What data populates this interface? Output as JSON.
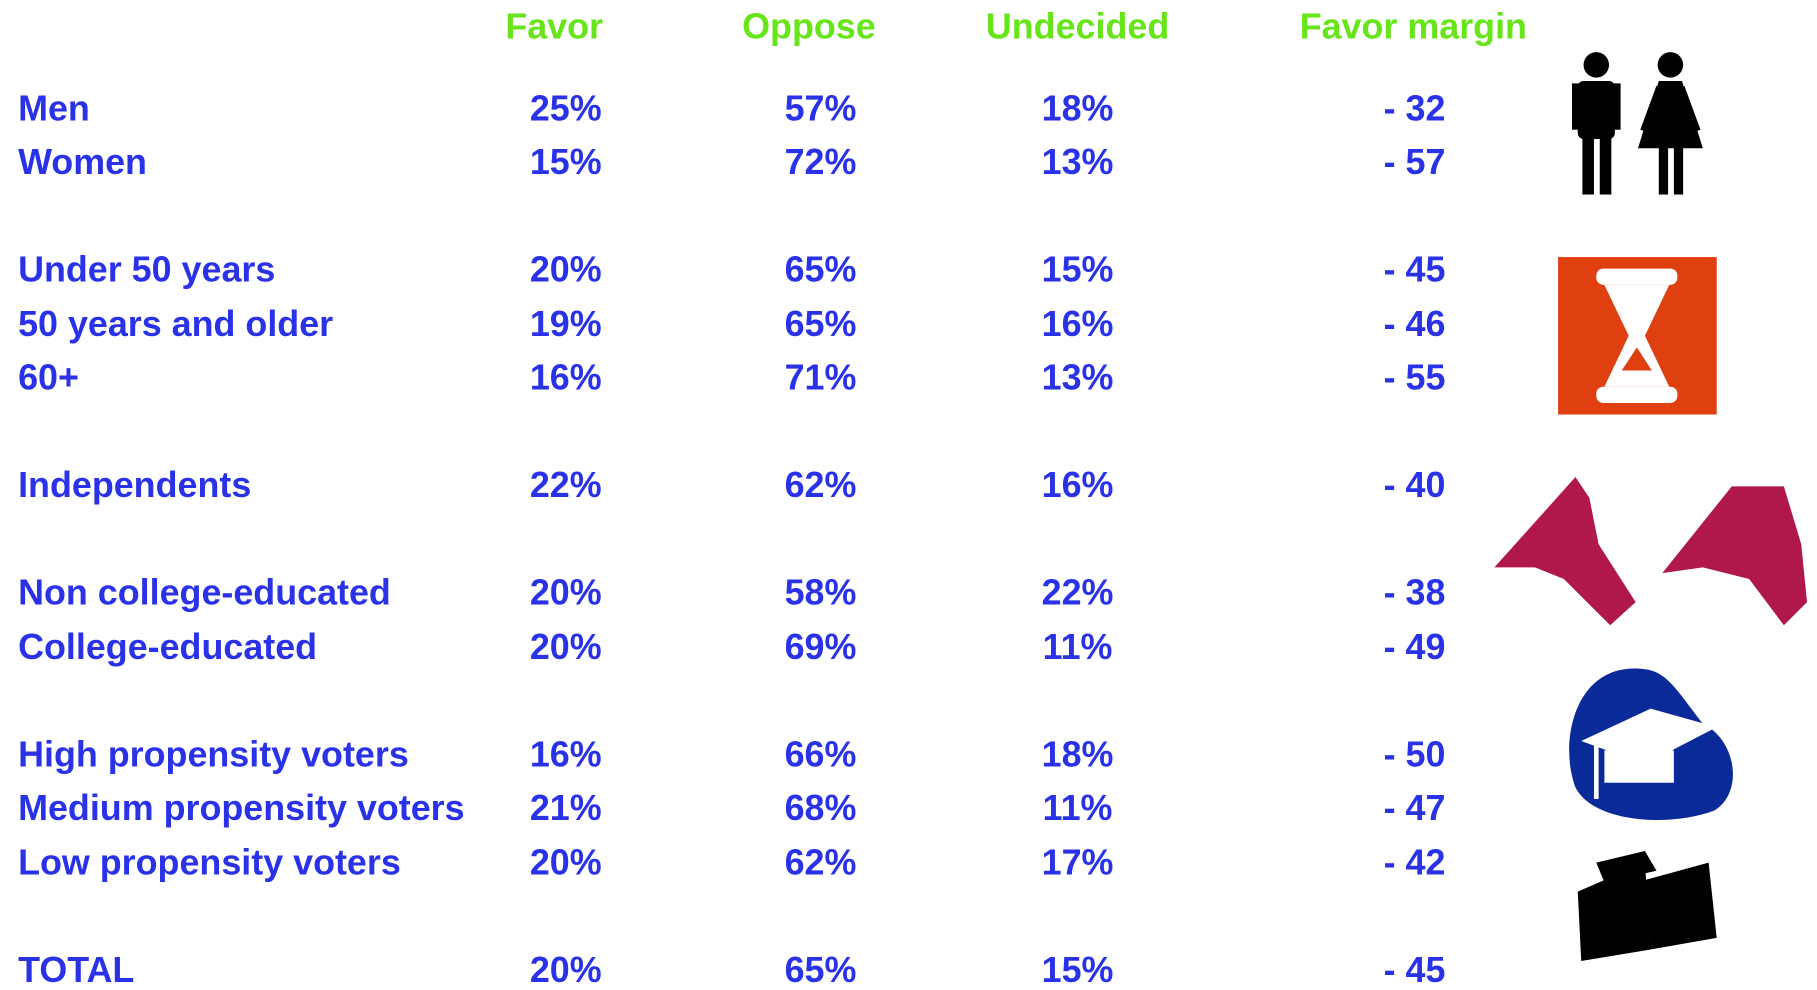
{
  "header": {
    "columns": [
      "Favor",
      "Oppose",
      "Undecided",
      "Favor margin"
    ]
  },
  "table": {
    "rows": [
      [
        "Men",
        "25%",
        "57%",
        "18%",
        "- 32"
      ],
      [
        "Women",
        "15%",
        "72%",
        "13%",
        "- 57"
      ],
      [
        "Under 50 years",
        "20%",
        "65%",
        "15%",
        "- 45"
      ],
      [
        "50 years and older",
        "19%",
        "65%",
        "16%",
        "- 46"
      ],
      [
        "60+",
        "16%",
        "71%",
        "13%",
        "- 55"
      ],
      [
        "Independents",
        "22%",
        "62%",
        "16%",
        "- 40"
      ],
      [
        "Non college-educated",
        "20%",
        "58%",
        "22%",
        "- 38"
      ],
      [
        "College-educated",
        "20%",
        "69%",
        "11%",
        "- 49"
      ],
      [
        "High propensity voters",
        "16%",
        "66%",
        "18%",
        "- 50"
      ],
      [
        "Medium propensity voters",
        "21%",
        "68%",
        "11%",
        "- 47"
      ],
      [
        "Low propensity voters",
        "20%",
        "62%",
        "17%",
        "- 42"
      ],
      [
        "TOTAL",
        "20%",
        "65%",
        "15%",
        "- 45"
      ]
    ]
  }
}
